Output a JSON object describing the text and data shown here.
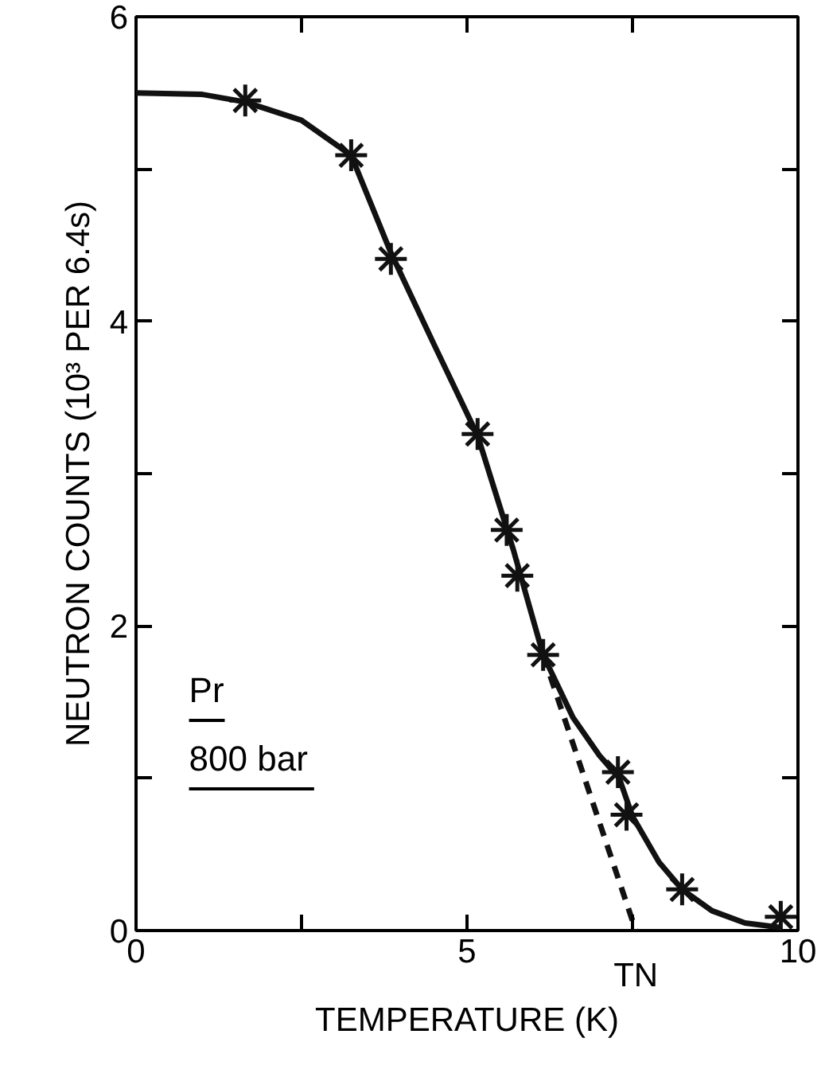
{
  "chart_data": {
    "type": "scatter",
    "xlabel": "TEMPERATURE (K)",
    "ylabel": "NEUTRON COUNTS (10³ PER 6.4s)",
    "xlim": [
      0,
      10
    ],
    "ylim": [
      0,
      6
    ],
    "xticks": [
      0,
      {
        "value": 2.5,
        "label": null
      },
      5,
      {
        "value": 7.5,
        "label": null
      },
      10
    ],
    "yticks": [
      0,
      {
        "value": 1,
        "label": null
      },
      2,
      {
        "value": 3,
        "label": null
      },
      4,
      {
        "value": 5,
        "label": null
      },
      6
    ],
    "grid": false,
    "series": [
      {
        "type": "line",
        "color": "#111111",
        "line_style": "solid",
        "marker": "none",
        "x": [
          0,
          1,
          1.65,
          2.5,
          3.25,
          3.85,
          4.5,
          5.16,
          5.7,
          6.15,
          6.6,
          7.0,
          7.3,
          7.5,
          7.9,
          8.25,
          8.7,
          9.2,
          9.74
        ],
        "values": [
          5.5,
          5.49,
          5.44,
          5.32,
          5.09,
          4.45,
          3.85,
          3.25,
          2.5,
          1.81,
          1.4,
          1.15,
          1.0,
          0.75,
          0.45,
          0.27,
          0.13,
          0.05,
          0.02
        ]
      },
      {
        "type": "line",
        "color": "#111111",
        "line_style": "dashed",
        "marker": "none",
        "x": [
          6.15,
          7.55
        ],
        "values": [
          1.81,
          0
        ]
      },
      {
        "color": "#111111",
        "marker": "cross",
        "x": [
          1.65,
          3.25,
          3.85,
          5.16,
          5.6,
          5.76,
          6.15,
          7.28,
          7.41,
          8.25,
          9.74
        ],
        "values": [
          5.45,
          5.09,
          4.41,
          3.26,
          2.63,
          2.33,
          1.81,
          1.04,
          0.76,
          0.27,
          0.09
        ]
      }
    ],
    "annotations": [
      {
        "text": "TN",
        "x": 7.55,
        "y": 0
      },
      "Pr",
      "800 bar"
    ]
  }
}
